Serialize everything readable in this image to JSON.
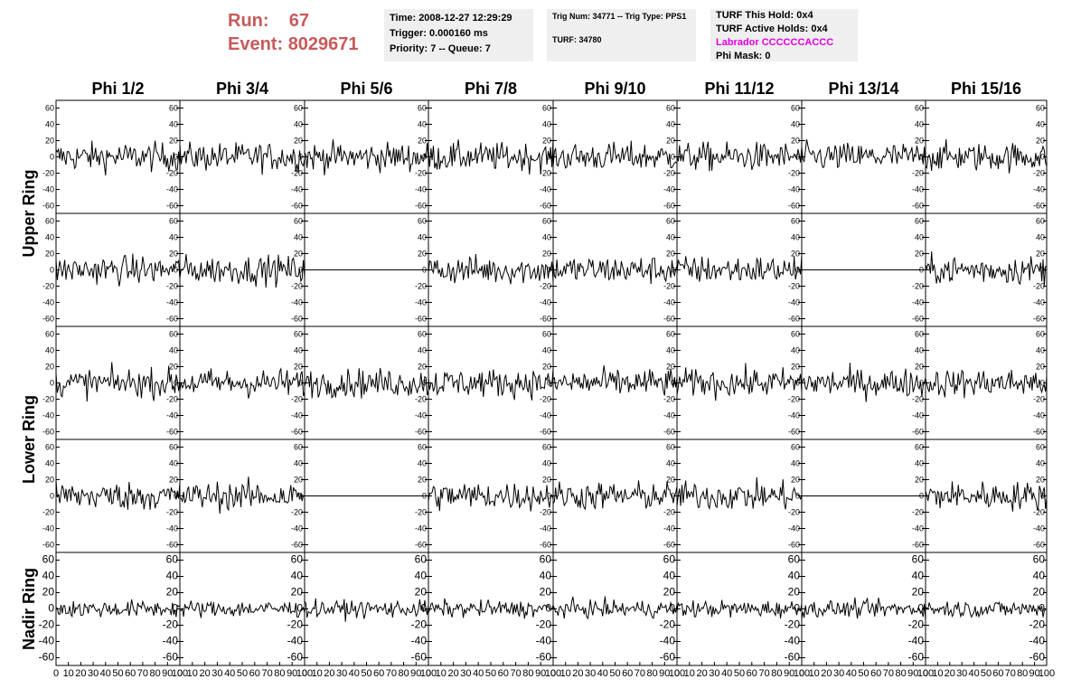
{
  "header": {
    "run_label": "Run:",
    "run_value": "67",
    "event_label": "Event:",
    "event_value": "8029671",
    "box1": {
      "time": "Time: 2008-12-27 12:29:29",
      "trigger": "Trigger: 0.000160 ms",
      "priority": "Priority: 7 -- Queue: 7"
    },
    "box2": {
      "trig": "Trig Num: 34771 -- Trig Type: PPS1",
      "turf": "TURF: 34780"
    },
    "box3": {
      "this_hold": "TURF This Hold: 0x4",
      "active_holds": "TURF Active Holds: 0x4",
      "labrador": "Labrador CCCCCCACCC",
      "phi_mask": "Phi Mask: 0"
    }
  },
  "chart_data": {
    "type": "line",
    "columns": [
      "Phi 1/2",
      "Phi 3/4",
      "Phi 5/6",
      "Phi 7/8",
      "Phi 9/10",
      "Phi 11/12",
      "Phi 13/14",
      "Phi 15/16"
    ],
    "ring_labels": [
      "Upper Ring",
      "Lower Ring",
      "Nadir Ring"
    ],
    "xlim": [
      0,
      100
    ],
    "ylim": [
      -65,
      65
    ],
    "x_ticks": [
      "0",
      "10",
      "20",
      "30",
      "40",
      "50",
      "60",
      "70",
      "80",
      "90",
      "100"
    ],
    "y_ticks": [
      "60",
      "40",
      "20",
      "0",
      "-20",
      "-40",
      "-60"
    ],
    "flat_panels": [
      [
        1,
        2
      ],
      [
        1,
        6
      ],
      [
        3,
        2
      ],
      [
        3,
        6
      ]
    ],
    "grid": false
  },
  "colors": {
    "trace": "#000000",
    "run": "#c85a5a",
    "labrador": "#e000e0",
    "panel_bg": "#efefef"
  }
}
